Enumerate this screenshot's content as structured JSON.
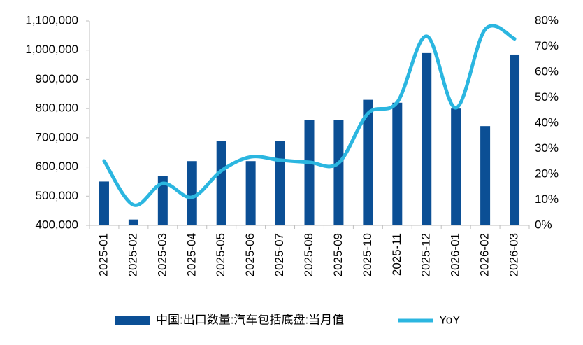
{
  "chart_data": {
    "type": "bar-line",
    "categories": [
      "2025-01",
      "2025-02",
      "2025-03",
      "2025-04",
      "2025-05",
      "2025-06",
      "2025-07",
      "2025-08",
      "2025-09",
      "2025-10",
      "2025-11",
      "2025-12",
      "2026-01",
      "2026-02",
      "2026-03"
    ],
    "series": [
      {
        "name": "中国:出口数量:汽车包括底盘:当月值",
        "type": "bar",
        "color": "#0b4f95",
        "values": [
          550000,
          420000,
          570000,
          620000,
          690000,
          620000,
          690000,
          760000,
          760000,
          830000,
          820000,
          990000,
          800000,
          740000,
          985000
        ]
      },
      {
        "name": "YoY",
        "type": "line",
        "axis": "y2",
        "color": "#2bb6e0",
        "values": [
          25.2,
          8,
          16.4,
          11,
          21.4,
          26.8,
          25.5,
          24.7,
          24.4,
          43.8,
          48.2,
          74,
          46,
          76.7,
          73
        ]
      }
    ],
    "ylim": [
      400000,
      1100000
    ],
    "yticks": [
      {
        "value": 400000,
        "label": "400,000"
      },
      {
        "value": 500000,
        "label": "500,000"
      },
      {
        "value": 600000,
        "label": "600,000"
      },
      {
        "value": 700000,
        "label": "700,000"
      },
      {
        "value": 800000,
        "label": "800,000"
      },
      {
        "value": 900000,
        "label": "900,000"
      },
      {
        "value": 1000000,
        "label": "1,000,000"
      },
      {
        "value": 1100000,
        "label": "1,100,000"
      }
    ],
    "y2lim": [
      0,
      80
    ],
    "y2ticks": [
      {
        "value": 0,
        "label": "0%"
      },
      {
        "value": 10,
        "label": "10%"
      },
      {
        "value": 20,
        "label": "20%"
      },
      {
        "value": 30,
        "label": "30%"
      },
      {
        "value": 40,
        "label": "40%"
      },
      {
        "value": 50,
        "label": "50%"
      },
      {
        "value": 60,
        "label": "60%"
      },
      {
        "value": 70,
        "label": "70%"
      },
      {
        "value": 80,
        "label": "80%"
      }
    ],
    "grid": false,
    "legend": "bottom"
  }
}
